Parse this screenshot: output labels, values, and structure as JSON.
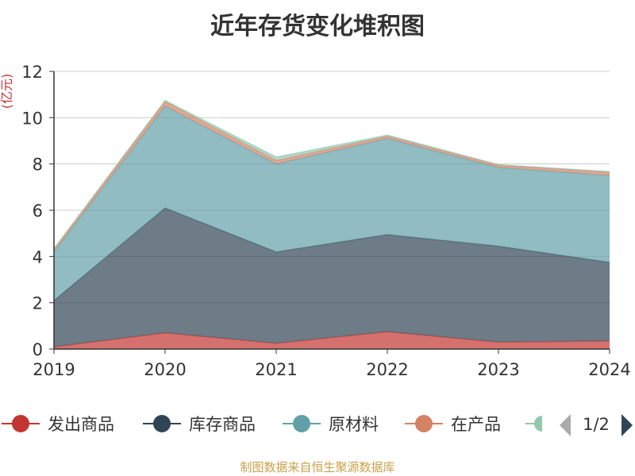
{
  "title": "近年存货变化堆积图",
  "source": "制图数据来自恒生聚源数据库",
  "legend_page": "1/2",
  "colors": {
    "发出商品": "#c23531",
    "库存商品": "#2f4554",
    "原材料": "#61a0a8",
    "在产品": "#d48265",
    "hidden_series": "#91c7ae"
  },
  "chart_data": {
    "type": "area",
    "stacked": true,
    "x": [
      "2019",
      "2020",
      "2021",
      "2022",
      "2023",
      "2024"
    ],
    "ylabel": "(亿元)",
    "ylim": [
      0,
      12
    ],
    "yticks": [
      0,
      2,
      4,
      6,
      8,
      10,
      12
    ],
    "grid": true,
    "legend_position": "bottom",
    "series": [
      {
        "name": "发出商品",
        "values": [
          0.1,
          0.7,
          0.25,
          0.75,
          0.3,
          0.35
        ]
      },
      {
        "name": "库存商品",
        "values": [
          2.0,
          5.4,
          3.95,
          4.2,
          4.15,
          3.4
        ]
      },
      {
        "name": "原材料",
        "values": [
          2.1,
          4.4,
          3.8,
          4.15,
          3.4,
          3.75
        ]
      },
      {
        "name": "在产品",
        "values": [
          0.1,
          0.2,
          0.15,
          0.1,
          0.1,
          0.15
        ]
      },
      {
        "name": "",
        "values": [
          0.05,
          0.05,
          0.15,
          0.05,
          0.02,
          0.02
        ]
      }
    ]
  }
}
